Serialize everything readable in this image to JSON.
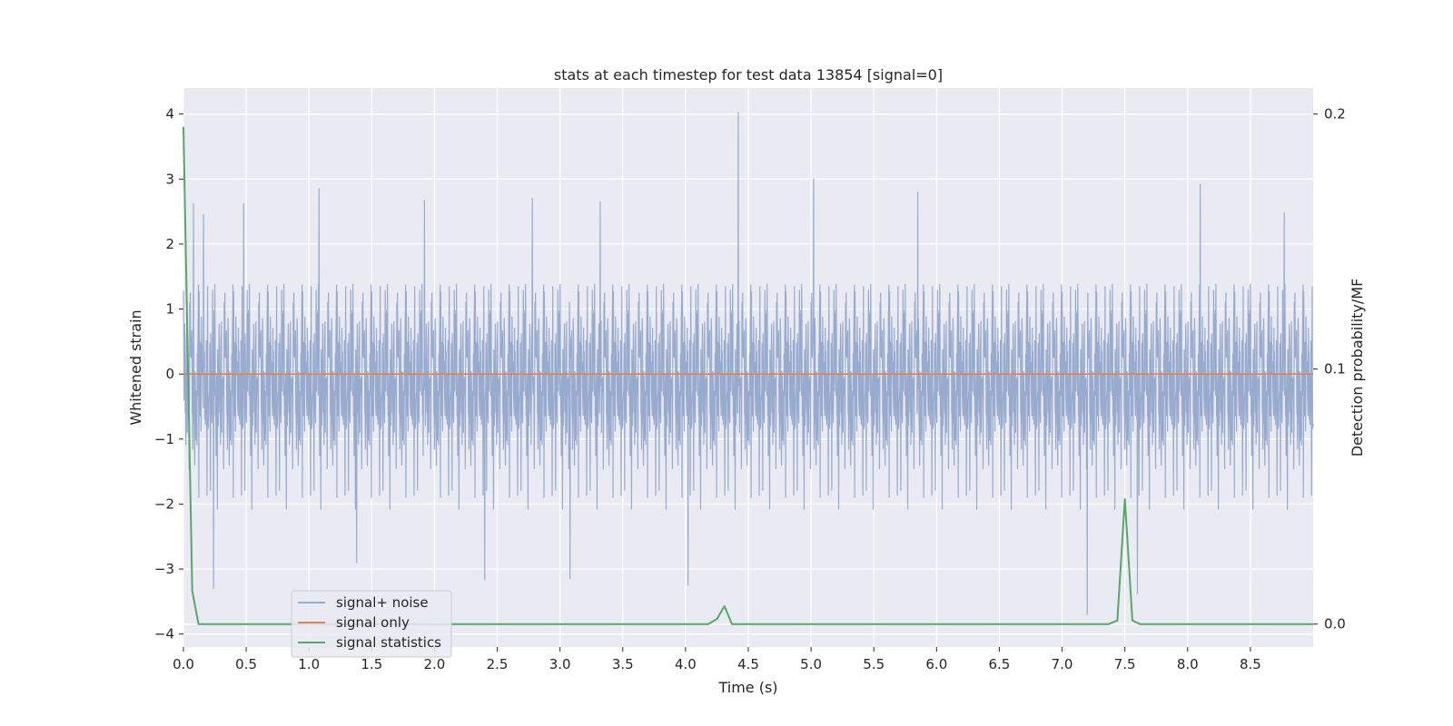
{
  "chart_data": {
    "type": "line",
    "title": "stats at each timestep for test data 13854 [signal=0]",
    "xlabel": "Time (s)",
    "ylabel": "Whitened strain",
    "ylabel_right": "Detection probability/MF",
    "xlim": [
      0.0,
      9.0
    ],
    "ylim": [
      -4.2,
      4.4
    ],
    "ylim_right": [
      -0.009,
      0.2102
    ],
    "x_ticks": [
      "0.0",
      "0.5",
      "1.0",
      "1.5",
      "2.0",
      "2.5",
      "3.0",
      "3.5",
      "4.0",
      "4.5",
      "5.0",
      "5.5",
      "6.0",
      "6.5",
      "7.0",
      "7.5",
      "8.0",
      "8.5"
    ],
    "y_ticks": [
      "4",
      "3",
      "2",
      "1",
      "0",
      "−1",
      "−2",
      "−3",
      "−4"
    ],
    "y_ticks_right": [
      "0.2",
      "0.1",
      "0.0"
    ],
    "grid": true,
    "legend_position": "lower-left",
    "background": "#eaeaf2",
    "series": [
      {
        "name": "signal+ noise",
        "color": "#98abcf",
        "axis": "left",
        "style": "dense gaussian noise, roughly symmetric about 0 with envelope about ±2",
        "peaks": [
          {
            "x": 0.08,
            "y": 2.62
          },
          {
            "x": 0.16,
            "y": 2.45
          },
          {
            "x": 0.24,
            "y": -3.3
          },
          {
            "x": 0.48,
            "y": 2.62
          },
          {
            "x": 1.08,
            "y": 2.85
          },
          {
            "x": 1.38,
            "y": -2.9
          },
          {
            "x": 1.92,
            "y": 2.67
          },
          {
            "x": 2.4,
            "y": -3.17
          },
          {
            "x": 2.78,
            "y": 2.7
          },
          {
            "x": 3.08,
            "y": -3.15
          },
          {
            "x": 3.32,
            "y": 2.65
          },
          {
            "x": 4.02,
            "y": -3.25
          },
          {
            "x": 4.42,
            "y": 4.02
          },
          {
            "x": 5.02,
            "y": 3.0
          },
          {
            "x": 5.85,
            "y": 2.8
          },
          {
            "x": 7.2,
            "y": -3.7
          },
          {
            "x": 7.6,
            "y": -3.38
          },
          {
            "x": 8.1,
            "y": 2.92
          },
          {
            "x": 8.77,
            "y": 2.48
          }
        ]
      },
      {
        "name": "signal only",
        "color": "#dd8452",
        "axis": "left",
        "x": [
          0.0,
          9.0
        ],
        "y": [
          0.0,
          0.0
        ]
      },
      {
        "name": "signal statistics",
        "color": "#55a868",
        "axis": "right",
        "x": [
          0.0,
          0.07,
          0.12,
          4.18,
          4.25,
          4.31,
          4.37,
          7.37,
          7.44,
          7.5,
          7.56,
          7.62,
          9.0
        ],
        "y": [
          0.195,
          0.013,
          0.0,
          0.0,
          0.002,
          0.007,
          0.0,
          0.0,
          0.0014,
          0.049,
          0.0014,
          0.0,
          0.0
        ]
      }
    ]
  }
}
